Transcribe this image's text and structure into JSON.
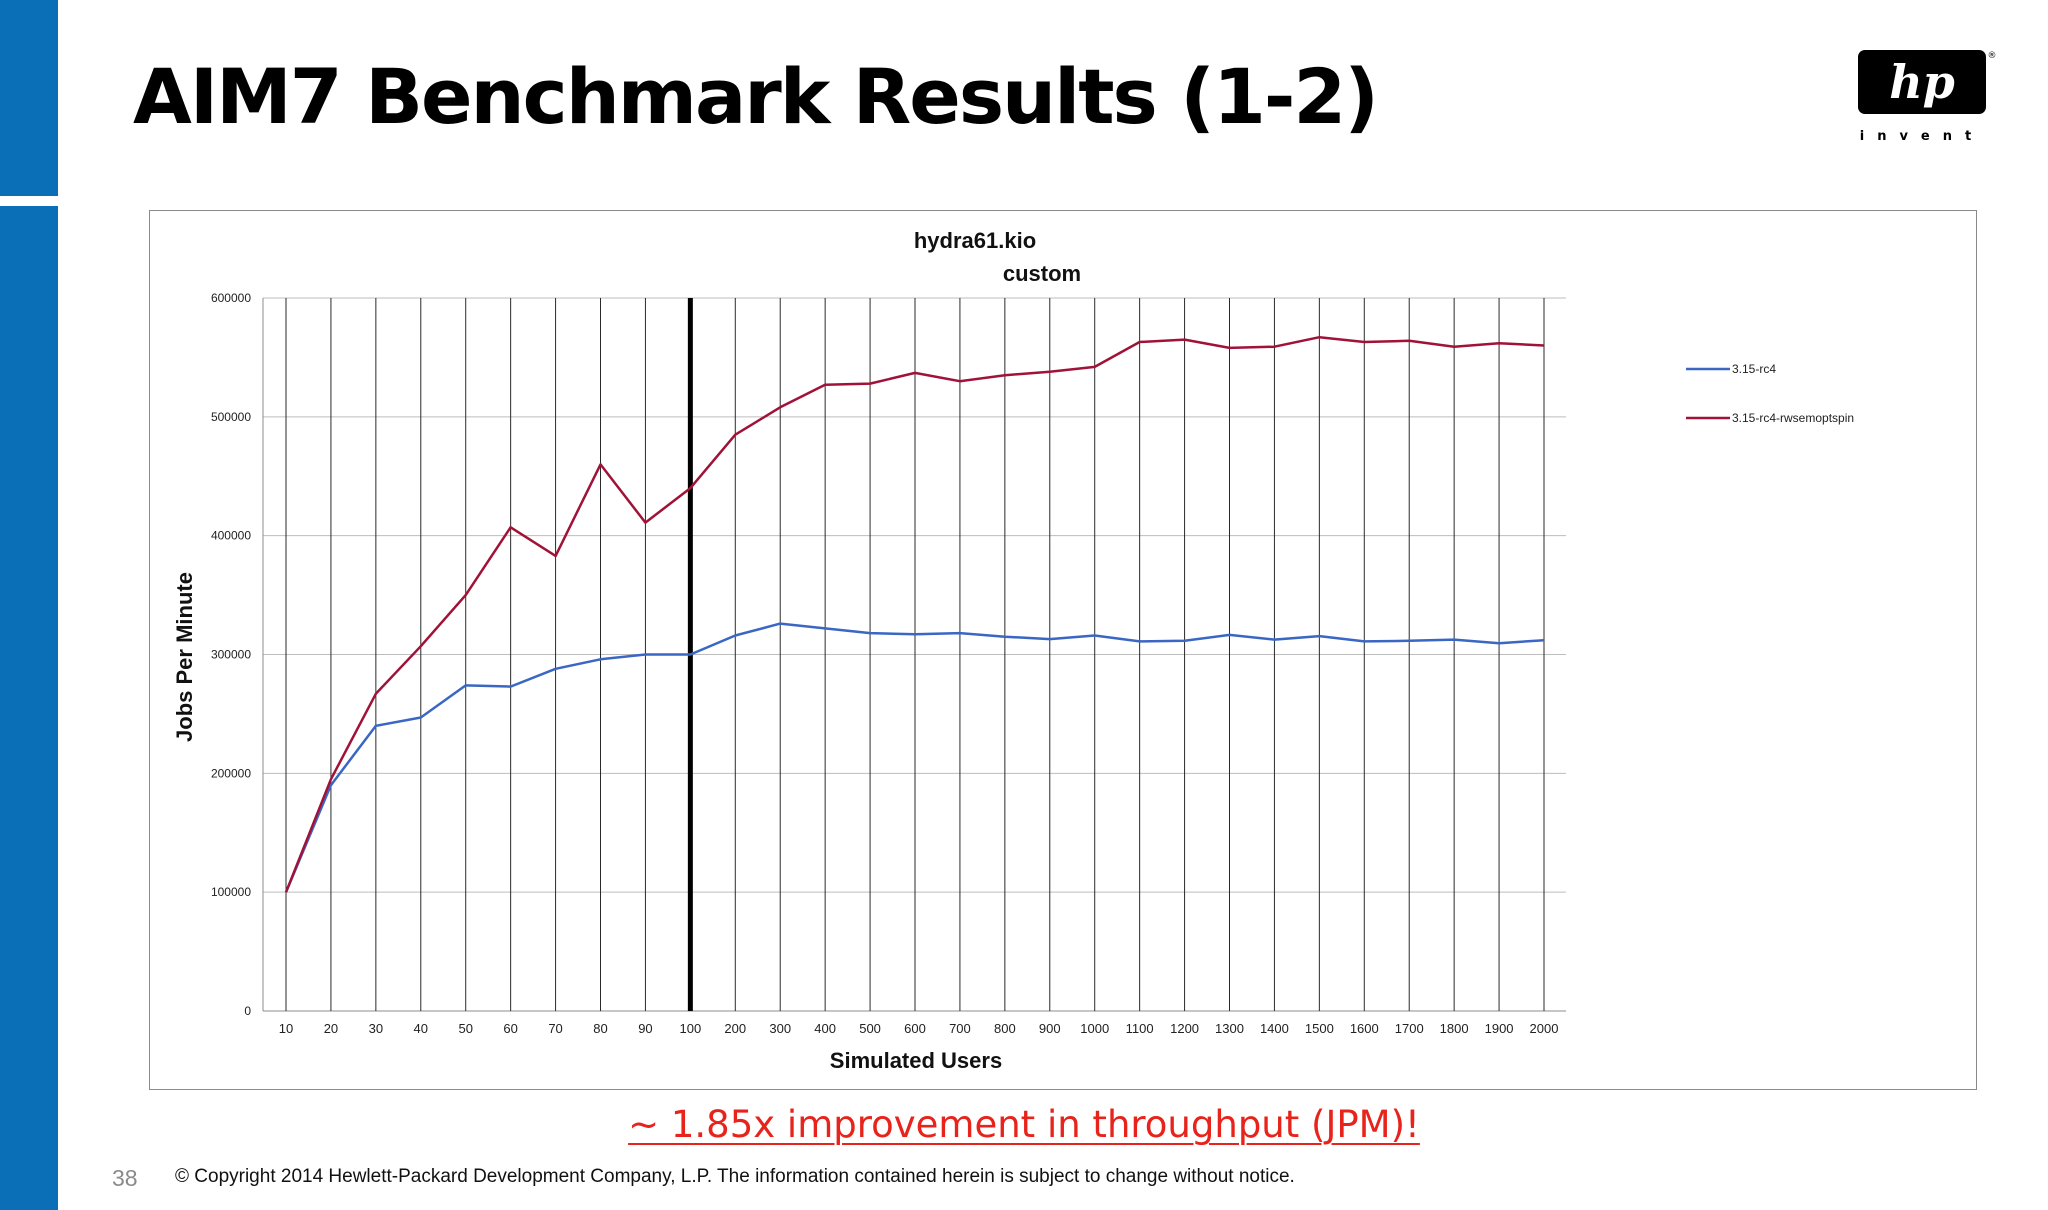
{
  "slide": {
    "title": "AIM7 Benchmark Results (1-2)",
    "callout": "~ 1.85x improvement in throughput (JPM)!",
    "page_number": "38",
    "copyright": "© Copyright 2014 Hewlett-Packard Development Company, L.P.  The information contained herein is subject to change without notice."
  },
  "logo": {
    "icon": "hp-logo-icon",
    "text": "hp",
    "tagline": "invent",
    "registered": "®",
    "color": "#000000"
  },
  "colors": {
    "sidebar": "#0a6fb6",
    "callout": "#e8231b"
  },
  "chart_data": {
    "type": "line",
    "title": "hydra61.kio",
    "subtitle": "custom",
    "xlabel": "Simulated Users",
    "ylabel": "Jobs Per Minute",
    "categories": [
      "10",
      "20",
      "30",
      "40",
      "50",
      "60",
      "70",
      "80",
      "90",
      "100",
      "200",
      "300",
      "400",
      "500",
      "600",
      "700",
      "800",
      "900",
      "1000",
      "1100",
      "1200",
      "1300",
      "1400",
      "1500",
      "1600",
      "1700",
      "1800",
      "1900",
      "2000"
    ],
    "ylim": [
      0,
      600000
    ],
    "yticks": [
      0,
      100000,
      200000,
      300000,
      400000,
      500000,
      600000
    ],
    "grid": "vertical lines at every category, horizontal lines at every y tick",
    "marker_at": "100",
    "legend_position": "right",
    "series": [
      {
        "name": "3.15-rc4",
        "color": "#3a66c4",
        "values": [
          100000,
          190000,
          240000,
          247000,
          274000,
          273000,
          288000,
          296000,
          300000,
          300000,
          316000,
          326000,
          322000,
          318000,
          317000,
          318000,
          315000,
          313000,
          316000,
          311000,
          311500,
          316500,
          312500,
          315500,
          311000,
          311500,
          312500,
          309500,
          312000
        ]
      },
      {
        "name": "3.15-rc4-rwsemoptspin",
        "color": "#a01238",
        "values": [
          100000,
          195000,
          267000,
          307000,
          350000,
          407000,
          383000,
          460000,
          411000,
          440000,
          485000,
          508000,
          527000,
          528000,
          537000,
          530000,
          535000,
          538000,
          542000,
          563000,
          565000,
          558000,
          559000,
          567000,
          563000,
          564000,
          559000,
          562000,
          560000
        ]
      }
    ]
  }
}
